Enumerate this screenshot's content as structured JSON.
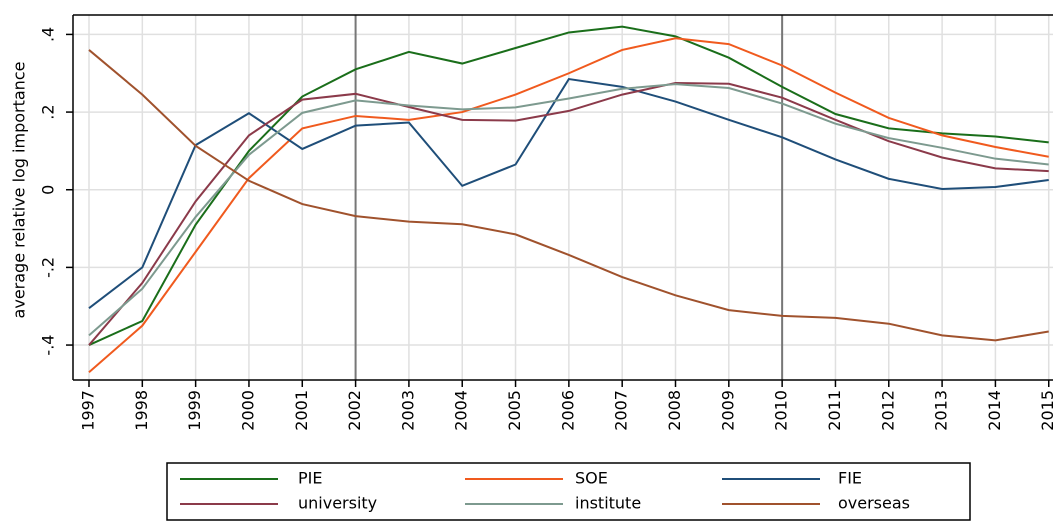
{
  "chart_data": {
    "type": "line",
    "y_label": "average relative log importance",
    "x": [
      1997,
      1998,
      1999,
      2000,
      2001,
      2002,
      2003,
      2004,
      2005,
      2006,
      2007,
      2008,
      2009,
      2010,
      2011,
      2012,
      2013,
      2014,
      2015
    ],
    "xlim": [
      1996.7,
      2015.08
    ],
    "xticks": [
      1997,
      1998,
      1999,
      2000,
      2001,
      2002,
      2003,
      2004,
      2005,
      2006,
      2007,
      2008,
      2009,
      2010,
      2011,
      2012,
      2013,
      2014,
      2015
    ],
    "ylim": [
      -0.49,
      0.45
    ],
    "yticks": [
      {
        "value": -0.4,
        "label": "-.4"
      },
      {
        "value": -0.2,
        "label": "-.2"
      },
      0,
      {
        "value": 0.2,
        "label": ".2"
      },
      {
        "value": 0.4,
        "label": ".4"
      }
    ],
    "grid": true,
    "reference_lines": [
      2002,
      2010
    ],
    "series": [
      {
        "name": "PIE",
        "color": "#1a6e1a",
        "values": [
          -0.4,
          -0.338,
          -0.09,
          0.1,
          0.24,
          0.31,
          0.355,
          0.325,
          0.365,
          0.405,
          0.42,
          0.395,
          0.34,
          0.265,
          0.195,
          0.158,
          0.145,
          0.137,
          0.122
        ]
      },
      {
        "name": "SOE",
        "color": "#f05a1e",
        "values": [
          -0.47,
          -0.35,
          -0.16,
          0.03,
          0.158,
          0.19,
          0.18,
          0.2,
          0.245,
          0.3,
          0.36,
          0.39,
          0.375,
          0.32,
          0.25,
          0.185,
          0.14,
          0.11,
          0.085
        ]
      },
      {
        "name": "FIE",
        "color": "#1f4e79",
        "values": [
          -0.305,
          -0.2,
          0.115,
          0.197,
          0.105,
          0.165,
          0.173,
          0.01,
          0.065,
          0.285,
          0.265,
          0.227,
          0.18,
          0.135,
          0.078,
          0.028,
          0.002,
          0.007,
          0.025
        ]
      },
      {
        "name": "university",
        "color": "#8b3a4a",
        "values": [
          -0.4,
          -0.24,
          -0.03,
          0.14,
          0.232,
          0.247,
          0.213,
          0.18,
          0.178,
          0.203,
          0.245,
          0.275,
          0.273,
          0.237,
          0.18,
          0.125,
          0.083,
          0.055,
          0.048
        ]
      },
      {
        "name": "institute",
        "color": "#7d9a8f",
        "values": [
          -0.375,
          -0.255,
          -0.07,
          0.09,
          0.198,
          0.23,
          0.217,
          0.207,
          0.212,
          0.235,
          0.26,
          0.272,
          0.262,
          0.222,
          0.17,
          0.133,
          0.108,
          0.08,
          0.065
        ]
      },
      {
        "name": "overseas",
        "color": "#a0522d",
        "values": [
          0.36,
          0.245,
          0.113,
          0.023,
          -0.037,
          -0.068,
          -0.082,
          -0.089,
          -0.115,
          -0.168,
          -0.225,
          -0.272,
          -0.31,
          -0.325,
          -0.33,
          -0.345,
          -0.375,
          -0.388,
          -0.365
        ]
      }
    ],
    "legend": "bottom"
  }
}
